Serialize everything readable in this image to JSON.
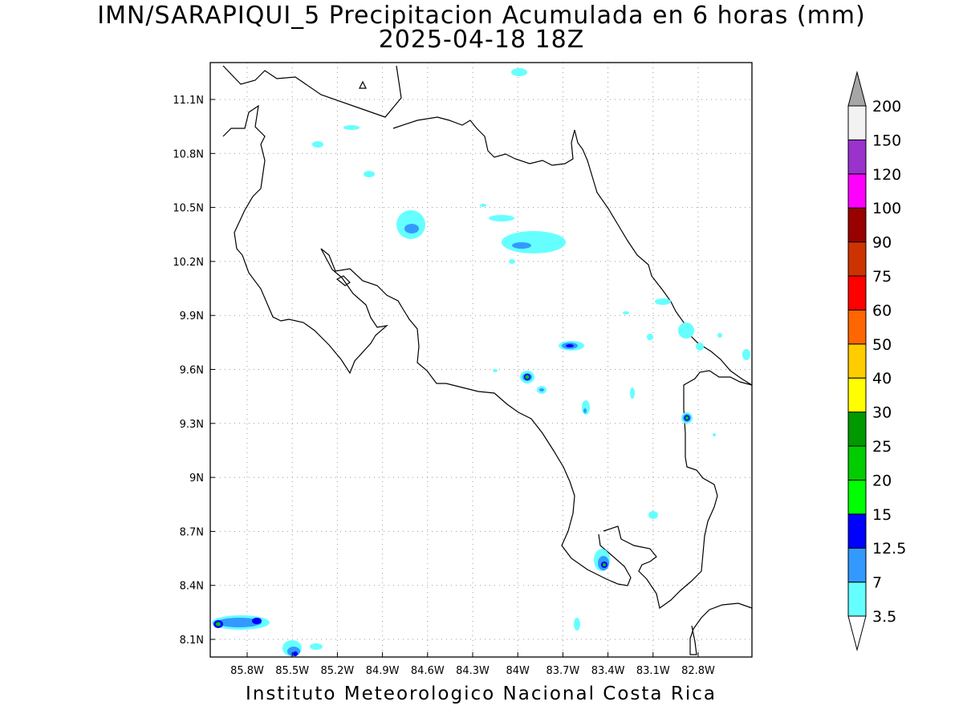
{
  "header": {
    "title": "IMN/SARAPIQUI_5 Precipitacion Acumulada en 6 horas (mm)",
    "datetime": "2025-04-18 18Z"
  },
  "footer": {
    "credit": "Instituto Meteorologico Nacional Costa Rica"
  },
  "map": {
    "lon_range": [
      -86.0,
      -82.55
    ],
    "lat_range": [
      8.0,
      11.3
    ],
    "grid": "dotted",
    "x_ticks": [
      "85.8W",
      "85.5W",
      "85.2W",
      "84.9W",
      "84.6W",
      "84.3W",
      "84W",
      "83.7W",
      "83.4W",
      "83.1W",
      "82.8W"
    ],
    "y_ticks": [
      "11.1N",
      "10.8N",
      "10.5N",
      "10.2N",
      "9.9N",
      "9.6N",
      "9.3N",
      "9N",
      "8.7N",
      "8.4N",
      "8.1N"
    ]
  },
  "colorbar": {
    "levels": [
      "3.5",
      "7",
      "12.5",
      "15",
      "20",
      "25",
      "30",
      "40",
      "50",
      "60",
      "75",
      "90",
      "100",
      "120",
      "150",
      "200"
    ],
    "colors": [
      "#66ffff",
      "#3399ff",
      "#0000ff",
      "#00ff00",
      "#00cc00",
      "#009900",
      "#ffff00",
      "#ffcc00",
      "#ff6600",
      "#ff0000",
      "#cc3300",
      "#990000",
      "#ff00ff",
      "#9933cc",
      "#f2f2f2",
      "#a6a6a6"
    ]
  }
}
